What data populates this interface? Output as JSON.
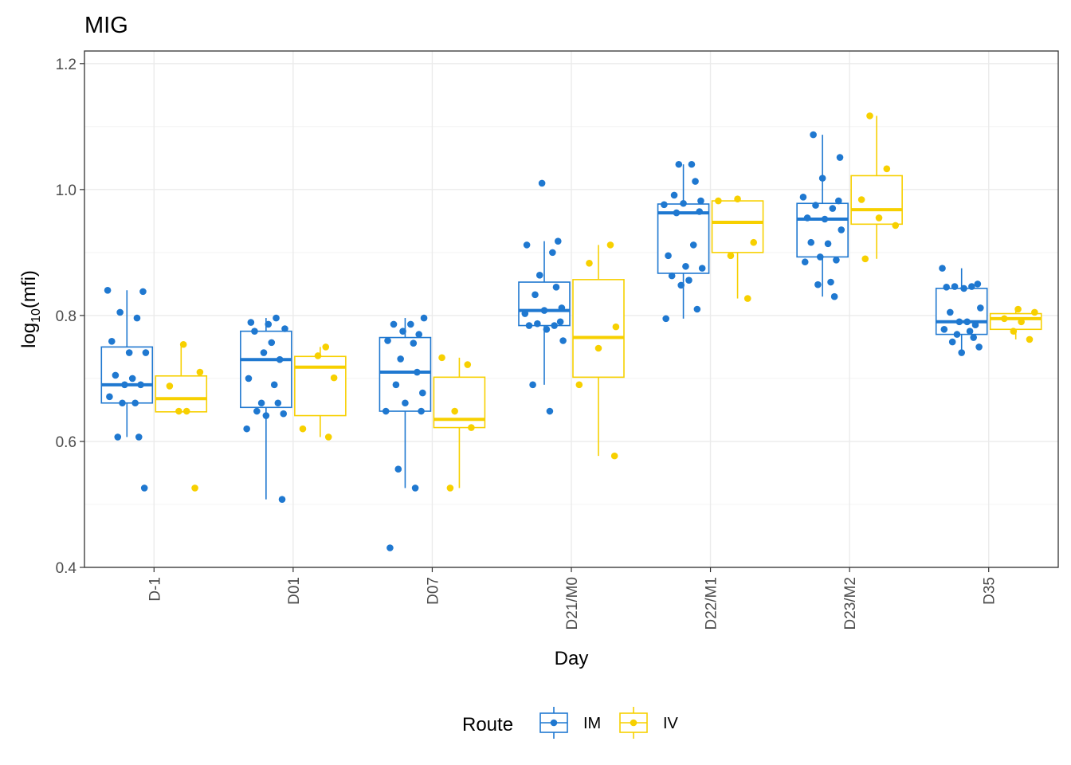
{
  "chart_data": {
    "type": "box",
    "title": "MIG",
    "xlabel": "Day",
    "ylabel": "log10(mfi)",
    "ylabel_base": "log",
    "ylabel_sub": "10",
    "ylabel_rest": "(mfi)",
    "ylim": [
      0.4,
      1.22
    ],
    "yticks": [
      "0.4",
      "0.6",
      "0.8",
      "1.0",
      "1.2"
    ],
    "yticks_values": [
      0.4,
      0.6,
      0.8,
      1.0,
      1.2
    ],
    "categories": [
      "D-1",
      "D01",
      "D07",
      "D21/M0",
      "D22/M1",
      "D23/M2",
      "D35"
    ],
    "grid": true,
    "legend": {
      "title": "Route",
      "position": "bottom"
    },
    "series": [
      {
        "name": "IM",
        "color": "#1f78d0",
        "boxes": [
          {
            "q1": 0.661,
            "median": 0.69,
            "q3": 0.75,
            "whisker_low": 0.607,
            "whisker_high": 0.84,
            "points": [
              0.84,
              0.838,
              0.805,
              0.796,
              0.759,
              0.741,
              0.741,
              0.705,
              0.7,
              0.69,
              0.69,
              0.671,
              0.661,
              0.661,
              0.607,
              0.607,
              0.526
            ]
          },
          {
            "q1": 0.654,
            "median": 0.73,
            "q3": 0.775,
            "whisker_low": 0.508,
            "whisker_high": 0.796,
            "points": [
              0.796,
              0.789,
              0.786,
              0.779,
              0.775,
              0.757,
              0.741,
              0.73,
              0.7,
              0.69,
              0.661,
              0.661,
              0.648,
              0.644,
              0.641,
              0.62,
              0.508
            ]
          },
          {
            "q1": 0.648,
            "median": 0.71,
            "q3": 0.765,
            "whisker_low": 0.526,
            "whisker_high": 0.796,
            "points": [
              0.796,
              0.786,
              0.786,
              0.775,
              0.77,
              0.76,
              0.756,
              0.731,
              0.71,
              0.69,
              0.677,
              0.661,
              0.648,
              0.648,
              0.556,
              0.526,
              0.431
            ]
          },
          {
            "q1": 0.784,
            "median": 0.808,
            "q3": 0.853,
            "whisker_low": 0.69,
            "whisker_high": 0.918,
            "points": [
              1.01,
              0.918,
              0.912,
              0.9,
              0.864,
              0.845,
              0.833,
              0.812,
              0.808,
              0.803,
              0.79,
              0.787,
              0.784,
              0.784,
              0.778,
              0.76,
              0.69,
              0.648
            ]
          },
          {
            "q1": 0.867,
            "median": 0.963,
            "q3": 0.977,
            "whisker_low": 0.795,
            "whisker_high": 1.04,
            "points": [
              1.04,
              1.04,
              1.013,
              0.991,
              0.982,
              0.978,
              0.976,
              0.965,
              0.963,
              0.912,
              0.895,
              0.878,
              0.875,
              0.863,
              0.856,
              0.848,
              0.81,
              0.795
            ]
          },
          {
            "q1": 0.893,
            "median": 0.953,
            "q3": 0.978,
            "whisker_low": 0.83,
            "whisker_high": 1.087,
            "points": [
              1.087,
              1.051,
              1.018,
              0.988,
              0.982,
              0.975,
              0.97,
              0.955,
              0.953,
              0.936,
              0.916,
              0.914,
              0.893,
              0.888,
              0.885,
              0.853,
              0.849,
              0.83
            ]
          },
          {
            "q1": 0.77,
            "median": 0.79,
            "q3": 0.843,
            "whisker_low": 0.741,
            "whisker_high": 0.875,
            "points": [
              0.875,
              0.85,
              0.846,
              0.846,
              0.845,
              0.843,
              0.812,
              0.805,
              0.79,
              0.79,
              0.785,
              0.778,
              0.775,
              0.77,
              0.765,
              0.758,
              0.75,
              0.741
            ]
          }
        ]
      },
      {
        "name": "IV",
        "color": "#f7d000",
        "boxes": [
          {
            "q1": 0.647,
            "median": 0.668,
            "q3": 0.704,
            "whisker_low": 0.647,
            "whisker_high": 0.754,
            "points": [
              0.754,
              0.71,
              0.688,
              0.648,
              0.648,
              0.526
            ]
          },
          {
            "q1": 0.641,
            "median": 0.718,
            "q3": 0.735,
            "whisker_low": 0.607,
            "whisker_high": 0.75,
            "points": [
              0.75,
              0.736,
              0.701,
              0.62,
              0.607
            ]
          },
          {
            "q1": 0.622,
            "median": 0.635,
            "q3": 0.702,
            "whisker_low": 0.526,
            "whisker_high": 0.733,
            "points": [
              0.733,
              0.722,
              0.648,
              0.622,
              0.526
            ]
          },
          {
            "q1": 0.702,
            "median": 0.765,
            "q3": 0.857,
            "whisker_low": 0.577,
            "whisker_high": 0.912,
            "points": [
              0.912,
              0.883,
              0.782,
              0.748,
              0.69,
              0.577
            ]
          },
          {
            "q1": 0.9,
            "median": 0.948,
            "q3": 0.982,
            "whisker_low": 0.827,
            "whisker_high": 0.985,
            "points": [
              0.985,
              0.982,
              0.916,
              0.895,
              0.827
            ]
          },
          {
            "q1": 0.945,
            "median": 0.968,
            "q3": 1.022,
            "whisker_low": 0.89,
            "whisker_high": 1.117,
            "points": [
              1.117,
              1.033,
              0.984,
              0.955,
              0.943,
              0.89
            ]
          },
          {
            "q1": 0.778,
            "median": 0.795,
            "q3": 0.803,
            "whisker_low": 0.762,
            "whisker_high": 0.81,
            "points": [
              0.81,
              0.805,
              0.795,
              0.79,
              0.775,
              0.762
            ]
          }
        ]
      }
    ]
  }
}
